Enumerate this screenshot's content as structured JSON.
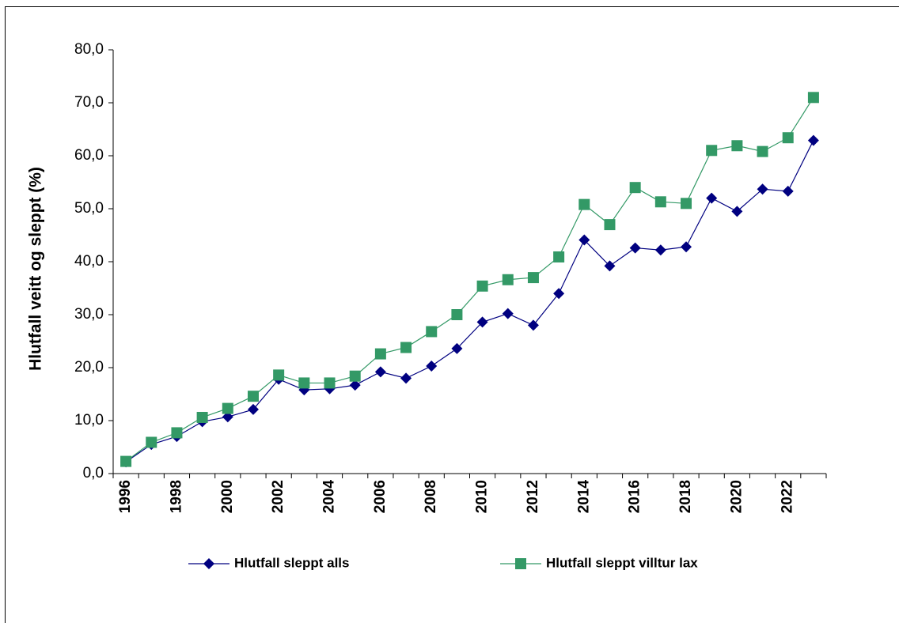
{
  "chart_data": {
    "type": "line",
    "y_label": "Hlutfall veitt og sleppt (%)",
    "categories": [
      "1996",
      null,
      "1998",
      null,
      "2000",
      null,
      "2002",
      null,
      "2004",
      null,
      "2006",
      null,
      "2008",
      null,
      "2010",
      null,
      "2012",
      null,
      "2014",
      null,
      "2016",
      null,
      "2018",
      null,
      "2020",
      null,
      "2022",
      null
    ],
    "series": [
      {
        "name": "Hlutfall sleppt alls",
        "color": "#000080",
        "marker": "diamond",
        "values": [
          2.2,
          5.5,
          7.0,
          9.8,
          10.7,
          12.1,
          17.8,
          15.8,
          16.0,
          16.7,
          19.2,
          18.0,
          20.3,
          23.6,
          28.6,
          30.2,
          28.0,
          34.0,
          44.1,
          39.2,
          42.6,
          42.2,
          42.8,
          52.0,
          49.5,
          53.7,
          53.3,
          62.9
        ]
      },
      {
        "name": "Hlutfall sleppt villtur lax",
        "color": "#339966",
        "marker": "square",
        "values": [
          2.3,
          5.9,
          7.7,
          10.6,
          12.3,
          14.6,
          18.6,
          17.1,
          17.1,
          18.4,
          22.6,
          23.8,
          26.8,
          30.0,
          35.4,
          36.6,
          37.0,
          40.9,
          50.8,
          47.0,
          54.0,
          51.3,
          51.0,
          61.0,
          61.9,
          60.8,
          63.4,
          71.0
        ]
      }
    ],
    "ylim": [
      0,
      80
    ],
    "yticks": [
      {
        "value": 0,
        "label": "0,0"
      },
      {
        "value": 10,
        "label": "10,0"
      },
      {
        "value": 20,
        "label": "20,0"
      },
      {
        "value": 30,
        "label": "30,0"
      },
      {
        "value": 40,
        "label": "40,0"
      },
      {
        "value": 50,
        "label": "50,0"
      },
      {
        "value": 60,
        "label": "60,0"
      },
      {
        "value": 70,
        "label": "70,0"
      },
      {
        "value": 80,
        "label": "80,0"
      }
    ],
    "grid": false,
    "legend": "bottom"
  }
}
